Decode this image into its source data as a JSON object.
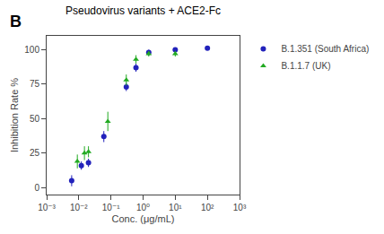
{
  "chart_data": {
    "type": "scatter",
    "title": "Pseudovirus variants + ACE2-Fc",
    "annotations": [
      "B"
    ],
    "xlabel": "Conc. (μg/mL)",
    "ylabel": "Inhibition Rate %",
    "log": "x",
    "xlim": [
      0.001,
      1000
    ],
    "xticks": [
      {
        "value": 0.001,
        "label": "10⁻³"
      },
      {
        "value": 0.01,
        "label": "10⁻²"
      },
      {
        "value": 0.1,
        "label": "10⁻¹"
      },
      {
        "value": 1,
        "label": "10⁰"
      },
      {
        "value": 10,
        "label": "10¹"
      },
      {
        "value": 100,
        "label": "10²"
      },
      {
        "value": 1000,
        "label": "10³"
      }
    ],
    "ylim": [
      -5,
      110
    ],
    "yticks": [
      0,
      25,
      50,
      75,
      100
    ],
    "grid": false,
    "legend": "right",
    "series": [
      {
        "name": "B.1.351 (South Africa)",
        "color": "#2222bb",
        "marker": "circle",
        "x": [
          0.006,
          0.012,
          0.02,
          0.06,
          0.3,
          0.6,
          1.5,
          10,
          100
        ],
        "values": [
          5,
          16,
          18,
          37,
          73,
          87,
          98,
          100,
          101
        ],
        "errors": [
          4,
          3,
          3,
          4,
          3,
          3,
          2,
          1,
          1
        ]
      },
      {
        "name": "B.1.1.7 (UK)",
        "color": "#22aa22",
        "marker": "triangle-up",
        "x": [
          0.009,
          0.015,
          0.02,
          0.08,
          0.3,
          0.6,
          1.5,
          10
        ],
        "values": [
          19,
          25,
          26,
          48,
          78,
          93,
          97,
          97
        ],
        "errors": [
          5,
          5,
          4,
          7,
          4,
          3,
          2,
          2
        ]
      }
    ]
  }
}
